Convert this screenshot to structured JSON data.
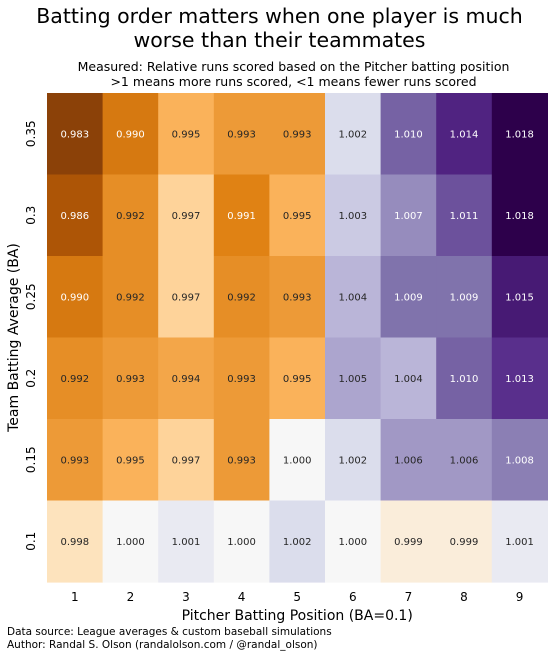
{
  "title_line1": "Batting order matters when one player is much",
  "title_line2": "worse than their teammates",
  "subtitle_line1": "Measured: Relative runs scored based on the Pitcher batting position",
  "subtitle_line2": ">1 means more runs scored, <1 means fewer runs scored",
  "footer_line1": "Data source: League averages & custom baseball simulations",
  "footer_line2": "Author: Randal S. Olson (randalolson.com / @randal_olson)",
  "chart_data": {
    "type": "heatmap",
    "xlabel": "Pitcher Batting Position (BA=0.1)",
    "ylabel": "Team Batting Average (BA)",
    "x_categories": [
      "1",
      "2",
      "3",
      "4",
      "5",
      "6",
      "7",
      "8",
      "9"
    ],
    "y_categories": [
      "0.35",
      "0.3",
      "0.25",
      "0.2",
      "0.15",
      "0.1"
    ],
    "values": [
      [
        0.983,
        0.99,
        0.995,
        0.993,
        0.993,
        1.002,
        1.01,
        1.014,
        1.018
      ],
      [
        0.986,
        0.992,
        0.997,
        0.991,
        0.995,
        1.003,
        1.007,
        1.011,
        1.018
      ],
      [
        0.99,
        0.992,
        0.997,
        0.992,
        0.993,
        1.004,
        1.009,
        1.009,
        1.015
      ],
      [
        0.992,
        0.993,
        0.994,
        0.993,
        0.995,
        1.005,
        1.004,
        1.01,
        1.013
      ],
      [
        0.993,
        0.995,
        0.997,
        0.993,
        1.0,
        1.002,
        1.006,
        1.006,
        1.008
      ],
      [
        0.998,
        1.0,
        1.001,
        1.0,
        1.002,
        1.0,
        0.999,
        0.999,
        1.001
      ]
    ],
    "colormap": "orange-white-purple diverging, centered at 1.000",
    "colors": {
      "low": "#7f3b08",
      "mid": "#f7f7f7",
      "high": "#2d004b"
    }
  }
}
